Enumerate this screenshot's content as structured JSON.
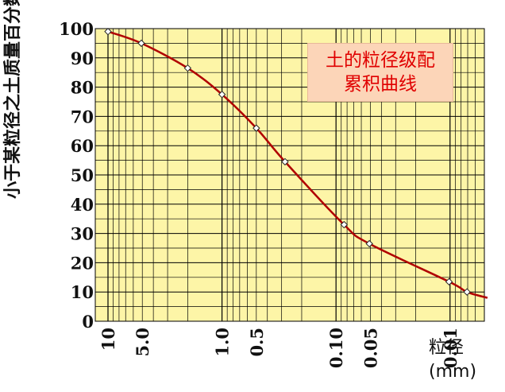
{
  "colors": {
    "background": "#fdf5a7",
    "grid": "#000000",
    "curve": "#b00000",
    "title_text": "#e00000",
    "title_box": "#fcd5b8"
  },
  "chart_data": {
    "type": "line",
    "title_lines": [
      "土的粒径级配",
      "累积曲线"
    ],
    "ylabel": "小于某粒径之土质量百分数 P（%）",
    "xlabel": "粒径",
    "xunit": "(mm)",
    "xscale": "log",
    "xaxis_reversed": true,
    "xlim": [
      10,
      0.005
    ],
    "ylim": [
      0,
      100
    ],
    "yticks": [
      0,
      10,
      20,
      30,
      40,
      50,
      60,
      70,
      80,
      90,
      100
    ],
    "xtick_labels": [
      {
        "value": 10,
        "label": "10"
      },
      {
        "value": 5,
        "label": "5.0"
      },
      {
        "value": 1,
        "label": "1.0"
      },
      {
        "value": 0.5,
        "label": "0.5"
      },
      {
        "value": 0.1,
        "label": "0.10"
      },
      {
        "value": 0.05,
        "label": "0.05"
      },
      {
        "value": 0.01,
        "label": "0.01"
      }
    ],
    "grid": true,
    "series": [
      {
        "points": [
          {
            "x": 10,
            "y": 99
          },
          {
            "x": 5.1,
            "y": 95
          },
          {
            "x": 2.0,
            "y": 86.5
          },
          {
            "x": 1.0,
            "y": 77.5
          },
          {
            "x": 0.5,
            "y": 66
          },
          {
            "x": 0.28,
            "y": 54.5
          },
          {
            "x": 0.085,
            "y": 33
          },
          {
            "x": 0.051,
            "y": 26.5
          },
          {
            "x": 0.0102,
            "y": 13.5
          },
          {
            "x": 0.0071,
            "y": 10
          }
        ],
        "curve_end": {
          "x": 0.0047,
          "y": 8
        }
      }
    ]
  }
}
